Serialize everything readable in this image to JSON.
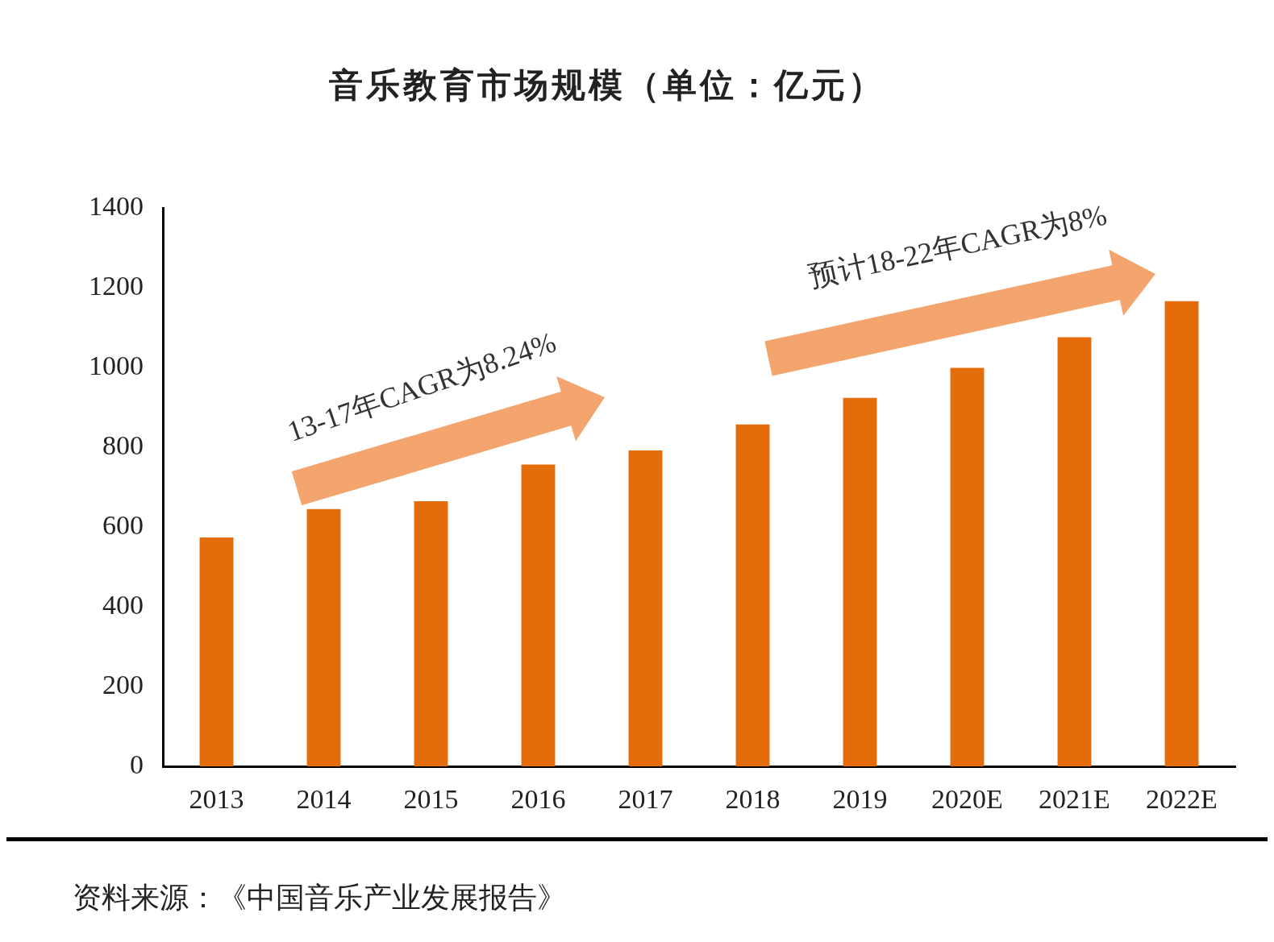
{
  "chart_data": {
    "type": "bar",
    "title": "音乐教育市场规模（单位：亿元）",
    "categories": [
      "2013",
      "2014",
      "2015",
      "2016",
      "2017",
      "2018",
      "2019",
      "2020E",
      "2021E",
      "2022E"
    ],
    "values": [
      574,
      645,
      665,
      757,
      792,
      857,
      924,
      999,
      1076,
      1166
    ],
    "color": "#e46c0a",
    "ylim": [
      0,
      1400
    ],
    "yticks": [
      0,
      200,
      400,
      600,
      800,
      1000,
      1200,
      1400
    ],
    "grid": false,
    "legend": false,
    "annotations": [
      "13-17年CAGR为8.24%",
      "预计18-22年CAGR为8%",
      "资料来源：《中国音乐产业发展报告》"
    ]
  }
}
